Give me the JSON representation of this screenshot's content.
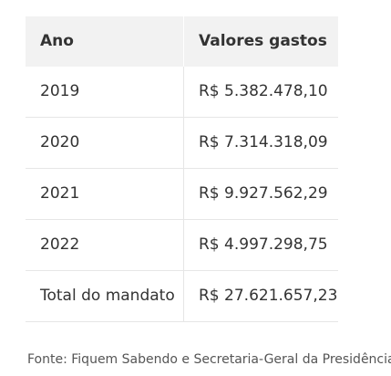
{
  "table": {
    "headers": [
      "Ano",
      "Valores gastos"
    ],
    "rows": [
      [
        "2019",
        "R$ 5.382.478,10"
      ],
      [
        "2020",
        "R$ 7.314.318,09"
      ],
      [
        "2021",
        "R$ 9.927.562,29"
      ],
      [
        "2022",
        "R$ 4.997.298,75"
      ],
      [
        "Total do mandato",
        "R$ 27.621.657,23"
      ]
    ]
  },
  "source": "Fonte: Fiquem Sabendo e Secretaria-Geral da Presidência",
  "colors": {
    "header_bg": "#f2f2f2",
    "border": "#e6e6e6",
    "text": "#333333"
  }
}
